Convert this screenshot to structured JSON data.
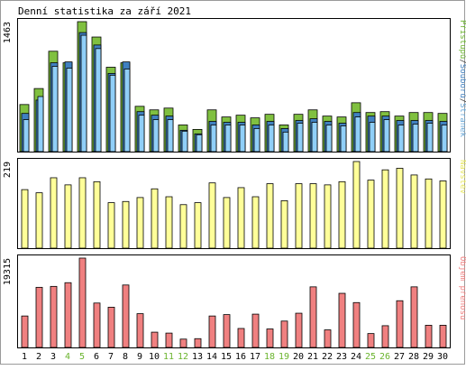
{
  "title": "Denní statistika za září 2021",
  "colors": {
    "hits": "#80c040",
    "files": "#4080c0",
    "pages": "#90cff8",
    "visits": "#ffff99",
    "kbytes": "#f08080",
    "weekend_day": "#6ab42d",
    "day": "#000000",
    "frame": "#000000",
    "grid": "#c0c0c0"
  },
  "chart_data": [
    {
      "type": "bar",
      "title": "",
      "max_label": "1463",
      "legend_parts": [
        {
          "text": "Přístupů",
          "color": "#6ab42d"
        },
        {
          "text": "/",
          "color": "#404040"
        },
        {
          "text": "Souborů",
          "color": "#4080c0"
        },
        {
          "text": "/",
          "color": "#404040"
        },
        {
          "text": "Stránek",
          "color": "#6aa8d8"
        }
      ],
      "ylim": [
        0,
        1463
      ],
      "categories": [
        "1",
        "2",
        "3",
        "4",
        "5",
        "6",
        "7",
        "8",
        "9",
        "10",
        "11",
        "12",
        "13",
        "14",
        "15",
        "16",
        "17",
        "18",
        "19",
        "20",
        "21",
        "22",
        "23",
        "24",
        "25",
        "26",
        "27",
        "28",
        "29",
        "30"
      ],
      "weekend_days": [
        "4",
        "5",
        "11",
        "12",
        "18",
        "19",
        "25",
        "26"
      ],
      "series": [
        {
          "name": "Přístupů",
          "values": [
            530,
            710,
            1130,
            1000,
            1463,
            1290,
            950,
            1000,
            510,
            470,
            490,
            300,
            250,
            470,
            390,
            410,
            380,
            420,
            300,
            420,
            470,
            400,
            390,
            550,
            440,
            450,
            400,
            440,
            440,
            430
          ]
        },
        {
          "name": "Souborů",
          "values": [
            430,
            580,
            1000,
            1010,
            1340,
            1200,
            880,
            1010,
            450,
            410,
            400,
            240,
            200,
            340,
            330,
            330,
            300,
            340,
            260,
            350,
            370,
            340,
            320,
            440,
            400,
            400,
            350,
            350,
            350,
            340
          ]
        },
        {
          "name": "Stránek",
          "values": [
            360,
            620,
            960,
            940,
            1310,
            1160,
            860,
            930,
            410,
            360,
            360,
            230,
            190,
            300,
            300,
            300,
            260,
            300,
            220,
            320,
            330,
            300,
            290,
            390,
            330,
            360,
            300,
            310,
            320,
            300
          ]
        }
      ]
    },
    {
      "type": "bar",
      "title": "",
      "max_label": "219",
      "legend_parts": [
        {
          "text": "Návštěv",
          "color": "#e8e860"
        }
      ],
      "ylim": [
        0,
        219
      ],
      "categories": [
        "1",
        "2",
        "3",
        "4",
        "5",
        "6",
        "7",
        "8",
        "9",
        "10",
        "11",
        "12",
        "13",
        "14",
        "15",
        "16",
        "17",
        "18",
        "19",
        "20",
        "21",
        "22",
        "23",
        "24",
        "25",
        "26",
        "27",
        "28",
        "29",
        "30"
      ],
      "series": [
        {
          "name": "Návštěv",
          "values": [
            148,
            140,
            178,
            160,
            178,
            168,
            115,
            118,
            128,
            150,
            130,
            110,
            115,
            165,
            128,
            153,
            130,
            163,
            120,
            163,
            163,
            160,
            168,
            219,
            172,
            198,
            202,
            185,
            175,
            170
          ]
        }
      ]
    },
    {
      "type": "bar",
      "title": "",
      "max_label": "19315",
      "legend_parts": [
        {
          "text": "Objem přenosu",
          "color": "#f08080"
        }
      ],
      "ylim": [
        0,
        19315
      ],
      "categories": [
        "1",
        "2",
        "3",
        "4",
        "5",
        "6",
        "7",
        "8",
        "9",
        "10",
        "11",
        "12",
        "13",
        "14",
        "15",
        "16",
        "17",
        "18",
        "19",
        "20",
        "21",
        "22",
        "23",
        "24",
        "25",
        "26",
        "27",
        "28",
        "29",
        "30"
      ],
      "series": [
        {
          "name": "Objem přenosu",
          "values": [
            6800,
            13000,
            13200,
            14000,
            19315,
            9600,
            8700,
            13500,
            7300,
            3300,
            3100,
            1800,
            1900,
            6800,
            7100,
            4100,
            7200,
            4000,
            5700,
            7400,
            13100,
            3800,
            11700,
            9700,
            3000,
            4700,
            10100,
            13100,
            4800,
            4800
          ]
        }
      ]
    }
  ]
}
